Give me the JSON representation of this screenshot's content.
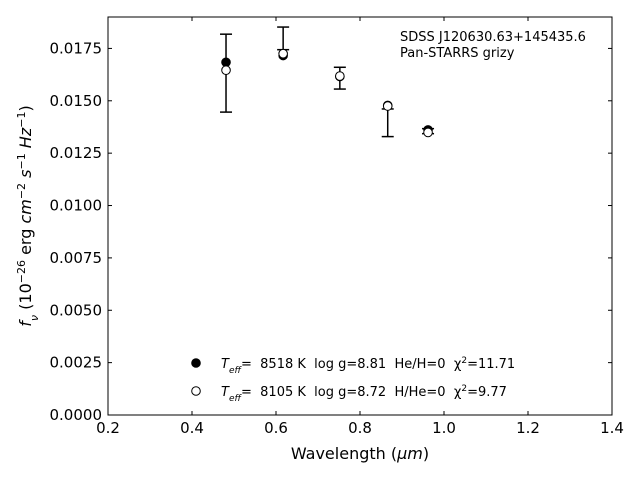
{
  "chart_data": {
    "type": "scatter",
    "xlabel_prefix": "Wavelength (",
    "xlabel_unit": "μm",
    "xlabel_suffix": ")",
    "ylabel": "f_ν (10^-26 erg cm^-2 s^-1 Hz^-1)",
    "xlim": [
      0.2,
      1.4
    ],
    "ylim": [
      0.0,
      0.019
    ],
    "xticks": [
      "0.2",
      "0.4",
      "0.6",
      "0.8",
      "1.0",
      "1.2",
      "1.4"
    ],
    "yticks": [
      "0.0000",
      "0.0025",
      "0.0050",
      "0.0075",
      "0.0100",
      "0.0125",
      "0.0150",
      "0.0175"
    ],
    "annotations": [
      "SDSS J120630.63+145435.6",
      "Pan-STARRS grizy"
    ],
    "observed": {
      "x": [
        0.481,
        0.617,
        0.752,
        0.866,
        0.962
      ],
      "y": [
        0.01632,
        0.01798,
        0.01608,
        0.01395,
        0.01355
      ],
      "yerr": [
        0.00186,
        0.00054,
        0.00052,
        0.00066,
        0.00012
      ]
    },
    "series": [
      {
        "name": "T_eff= 8518 K log g=8.81 He/H=0 χ²=11.71",
        "marker": "filled",
        "color": "#000000",
        "x": [
          0.481,
          0.617,
          0.752,
          0.866,
          0.962
        ],
        "y": [
          0.01684,
          0.01716,
          0.01616,
          0.01478,
          0.01361
        ]
      },
      {
        "name": "T_eff= 8105 K log g=8.72 H/He=0 χ²=9.77",
        "marker": "open",
        "color": "#000000",
        "x": [
          0.481,
          0.617,
          0.752,
          0.866,
          0.962
        ],
        "y": [
          0.01646,
          0.01725,
          0.01618,
          0.01475,
          0.01349
        ]
      }
    ],
    "legend": [
      {
        "teff_label": "T",
        "teff_sub": "eff",
        "rest": "=  8518 K  log g=8.81  He/H=0  χ",
        "chi_sup": "2",
        "chi_val": "=11.71"
      },
      {
        "teff_label": "T",
        "teff_sub": "eff",
        "rest": "=  8105 K  log g=8.72  H/He=0  χ",
        "chi_sup": "2",
        "chi_val": "=9.77"
      }
    ],
    "legend_placement": "lower-center",
    "grid": false
  }
}
